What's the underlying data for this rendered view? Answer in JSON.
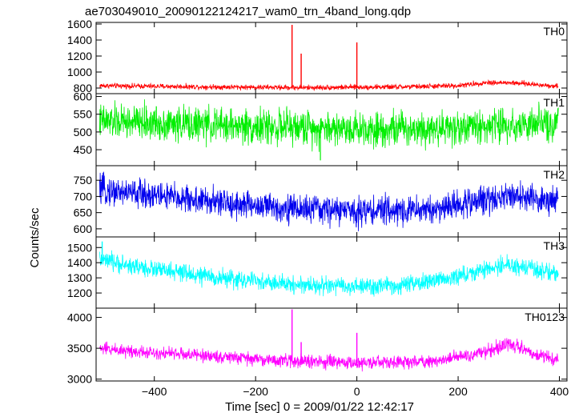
{
  "chart_data": {
    "type": "line",
    "title": "ae703049010_20090122124217_wam0_trn_4band_long.qdp",
    "xlabel": "Time [sec] 0 = 2009/01/22 12:42:17",
    "ylabel": "Counts/sec",
    "xlim": [
      -515,
      415
    ],
    "xticks": [
      -400,
      -200,
      0,
      200,
      400
    ],
    "xtick_labels": [
      "−400",
      "−200",
      "0",
      "200",
      "400"
    ],
    "panels": [
      {
        "name": "TH0",
        "color": "#ff0000",
        "ylim": [
          730,
          1620
        ],
        "yticks": [
          800,
          1000,
          1200,
          1400,
          1600
        ],
        "baseline": [
          [
            -510,
            830
          ],
          [
            -450,
            825
          ],
          [
            -300,
            815
          ],
          [
            -100,
            805
          ],
          [
            100,
            815
          ],
          [
            200,
            830
          ],
          [
            260,
            870
          ],
          [
            320,
            860
          ],
          [
            400,
            820
          ]
        ],
        "noise": 28,
        "spikes": [
          {
            "x": -128,
            "y": 1590
          },
          {
            "x": -110,
            "y": 1230
          },
          {
            "x": 0,
            "y": 1370
          }
        ],
        "low_dips": []
      },
      {
        "name": "TH1",
        "color": "#00ee00",
        "ylim": [
          405,
          608
        ],
        "yticks": [
          450,
          500,
          550,
          600
        ],
        "baseline": [
          [
            -510,
            530
          ],
          [
            -400,
            525
          ],
          [
            -200,
            515
          ],
          [
            0,
            510
          ],
          [
            200,
            512
          ],
          [
            300,
            520
          ],
          [
            400,
            520
          ]
        ],
        "noise": 42,
        "spikes": [],
        "low_dips": [
          {
            "x": -72,
            "y": 420
          }
        ]
      },
      {
        "name": "TH2",
        "color": "#0000ee",
        "ylim": [
          575,
          795
        ],
        "yticks": [
          600,
          650,
          700,
          750
        ],
        "baseline": [
          [
            -510,
            720
          ],
          [
            -400,
            705
          ],
          [
            -300,
            685
          ],
          [
            -150,
            665
          ],
          [
            0,
            655
          ],
          [
            150,
            660
          ],
          [
            250,
            690
          ],
          [
            300,
            705
          ],
          [
            400,
            680
          ]
        ],
        "noise": 38,
        "spikes": [],
        "low_dips": []
      },
      {
        "name": "TH3",
        "color": "#00ffff",
        "ylim": [
          1100,
          1570
        ],
        "yticks": [
          1200,
          1300,
          1400,
          1500
        ],
        "baseline": [
          [
            -510,
            1420
          ],
          [
            -450,
            1380
          ],
          [
            -300,
            1310
          ],
          [
            -150,
            1260
          ],
          [
            0,
            1240
          ],
          [
            100,
            1250
          ],
          [
            200,
            1310
          ],
          [
            300,
            1390
          ],
          [
            350,
            1350
          ],
          [
            400,
            1330
          ]
        ],
        "noise": 50,
        "spikes": [
          {
            "x": -503,
            "y": 1540
          }
        ],
        "low_dips": []
      },
      {
        "name": "TH0123",
        "color": "#ff00ff",
        "ylim": [
          2970,
          4150
        ],
        "yticks": [
          3000,
          3500,
          4000
        ],
        "baseline": [
          [
            -510,
            3500
          ],
          [
            -450,
            3460
          ],
          [
            -300,
            3380
          ],
          [
            -150,
            3300
          ],
          [
            0,
            3260
          ],
          [
            150,
            3290
          ],
          [
            250,
            3430
          ],
          [
            300,
            3580
          ],
          [
            350,
            3400
          ],
          [
            400,
            3300
          ]
        ],
        "noise": 90,
        "spikes": [
          {
            "x": -128,
            "y": 4130
          },
          {
            "x": -110,
            "y": 3600
          },
          {
            "x": 0,
            "y": 3750
          }
        ],
        "low_dips": []
      }
    ]
  }
}
